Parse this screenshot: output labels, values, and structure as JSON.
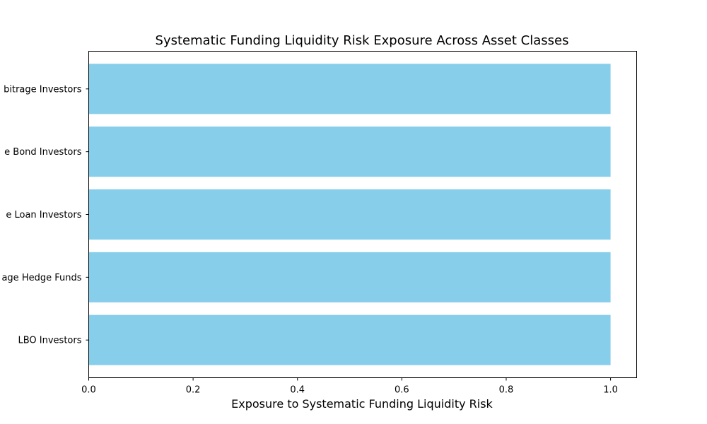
{
  "chart_data": {
    "type": "bar",
    "orientation": "horizontal",
    "title": "Systematic Funding Liquidity Risk Exposure Across Asset Classes",
    "xlabel": "Exposure to Systematic Funding Liquidity Risk",
    "ylabel": "",
    "categories": [
      "LBO Investors",
      "age Hedge Funds",
      "e Loan Investors",
      "e Bond Investors",
      "bitrage Investors"
    ],
    "values": [
      1.0,
      1.0,
      1.0,
      1.0,
      1.0
    ],
    "xlim": [
      0,
      1.05
    ],
    "xticks": [
      0.0,
      0.2,
      0.4,
      0.6,
      0.8,
      1.0
    ],
    "xtick_labels": [
      "0.0",
      "0.2",
      "0.4",
      "0.6",
      "0.8",
      "1.0"
    ],
    "bar_color": "#87ceeb",
    "grid": false,
    "legend": "none"
  }
}
